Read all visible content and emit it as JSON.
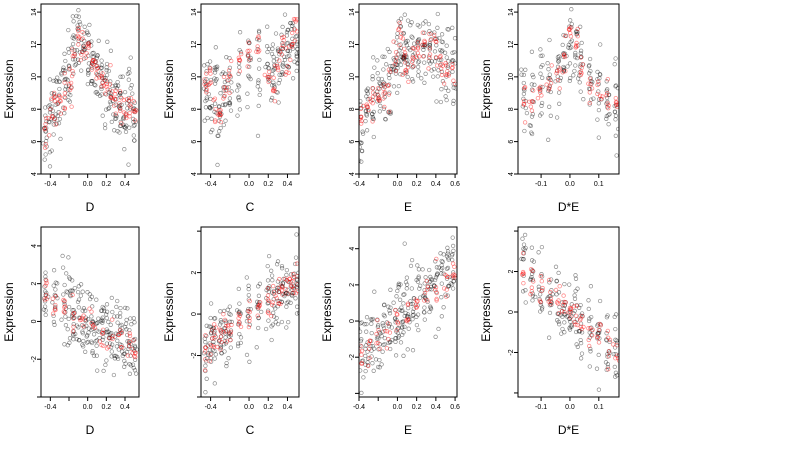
{
  "chart_data": [
    {
      "type": "scatter",
      "xlabel": "D",
      "ylabel": "Expression",
      "xlim": [
        -0.5,
        0.55
      ],
      "ylim": [
        4,
        14.5
      ],
      "xticks": [
        -0.4,
        -0.2,
        0.0,
        0.2,
        0.4
      ],
      "xtick_labels": [
        "-0.4",
        "",
        "0.0",
        "0.2",
        "0.4"
      ],
      "yticks": [
        4,
        6,
        8,
        10,
        12,
        14
      ],
      "ytick_labels": [
        "4",
        "6",
        "8",
        "10",
        "12",
        "14"
      ],
      "series": [
        {
          "color": "#000000",
          "style": "observed",
          "x": [
            -0.45,
            -0.4,
            -0.35,
            -0.3,
            -0.25,
            -0.2,
            -0.15,
            -0.1,
            -0.05,
            0.0,
            0.05,
            0.1,
            0.15,
            0.2,
            0.25,
            0.3,
            0.35,
            0.4,
            0.45,
            0.5
          ],
          "y": [
            6.5,
            7.5,
            8.0,
            8.5,
            9.5,
            10.0,
            11.5,
            12.5,
            12.0,
            11.5,
            11.0,
            10.5,
            10.0,
            9.5,
            9.0,
            8.5,
            8.0,
            8.0,
            8.5,
            7.5
          ]
        },
        {
          "color": "#ff0000",
          "style": "fitted",
          "x": [
            -0.45,
            -0.4,
            -0.35,
            -0.3,
            -0.25,
            -0.2,
            -0.15,
            -0.1,
            -0.05,
            0.0,
            0.05,
            0.1,
            0.15,
            0.2,
            0.25,
            0.3,
            0.35,
            0.4,
            0.45,
            0.5
          ],
          "y": [
            7.0,
            7.5,
            8.0,
            8.5,
            9.0,
            9.5,
            11.0,
            12.0,
            12.0,
            11.5,
            11.0,
            10.5,
            10.0,
            9.5,
            9.0,
            8.5,
            8.0,
            7.8,
            8.0,
            7.5
          ]
        }
      ]
    },
    {
      "type": "scatter",
      "xlabel": "C",
      "ylabel": "Expression",
      "xlim": [
        -0.5,
        0.52
      ],
      "ylim": [
        4,
        14.5
      ],
      "xticks": [
        -0.4,
        -0.2,
        0.0,
        0.2,
        0.4
      ],
      "xtick_labels": [
        "-0.4",
        "",
        "0.0",
        "0.2",
        "0.4"
      ],
      "yticks": [
        4,
        6,
        8,
        10,
        12,
        14
      ],
      "ytick_labels": [
        "4",
        "6",
        "8",
        "10",
        "12",
        "14"
      ],
      "series": [
        {
          "color": "#000000",
          "style": "observed",
          "x": [
            -0.45,
            -0.4,
            -0.35,
            -0.3,
            -0.25,
            -0.2,
            -0.1,
            0.0,
            0.1,
            0.2,
            0.25,
            0.3,
            0.35,
            0.4,
            0.45,
            0.5
          ],
          "y": [
            9.0,
            8.5,
            9.0,
            7.5,
            9.0,
            10.0,
            10.0,
            10.5,
            11.0,
            10.5,
            10.0,
            11.0,
            11.5,
            11.0,
            12.0,
            11.5
          ]
        },
        {
          "color": "#ff0000",
          "style": "fitted",
          "x": [
            -0.45,
            -0.4,
            -0.35,
            -0.3,
            -0.25,
            -0.2,
            -0.1,
            0.0,
            0.1,
            0.2,
            0.25,
            0.3,
            0.35,
            0.4,
            0.45,
            0.5
          ],
          "y": [
            9.5,
            10.0,
            8.0,
            7.5,
            9.5,
            10.5,
            11.0,
            11.5,
            11.5,
            10.0,
            9.0,
            11.0,
            12.0,
            11.0,
            12.5,
            13.0
          ]
        }
      ]
    },
    {
      "type": "scatter",
      "xlabel": "E",
      "ylabel": "Expression",
      "xlim": [
        -0.4,
        0.62
      ],
      "ylim": [
        4,
        14.5
      ],
      "xticks": [
        -0.4,
        -0.2,
        0.0,
        0.2,
        0.4,
        0.6
      ],
      "xtick_labels": [
        "-0.4",
        "",
        "0.0",
        "0.2",
        "0.4",
        "0.6"
      ],
      "yticks": [
        4,
        6,
        8,
        10,
        12,
        14
      ],
      "ytick_labels": [
        "4",
        "6",
        "8",
        "10",
        "12",
        "14"
      ],
      "series": [
        {
          "color": "#000000",
          "style": "observed",
          "x": [
            -0.38,
            -0.32,
            -0.26,
            -0.2,
            -0.14,
            -0.08,
            -0.02,
            0.02,
            0.06,
            0.1,
            0.16,
            0.22,
            0.28,
            0.34,
            0.4,
            0.46,
            0.52,
            0.58
          ],
          "y": [
            7.0,
            8.0,
            8.5,
            9.0,
            9.5,
            9.5,
            10.5,
            12.0,
            11.5,
            11.0,
            11.5,
            11.0,
            11.5,
            12.0,
            11.5,
            11.0,
            11.0,
            10.5
          ]
        },
        {
          "color": "#ff0000",
          "style": "fitted",
          "x": [
            -0.38,
            -0.32,
            -0.26,
            -0.2,
            -0.14,
            -0.08,
            -0.02,
            0.02,
            0.06,
            0.1,
            0.16,
            0.22,
            0.28,
            0.34,
            0.4,
            0.46,
            0.52,
            0.58
          ],
          "y": [
            7.5,
            8.0,
            8.5,
            9.0,
            9.2,
            9.5,
            11.0,
            12.5,
            11.5,
            10.5,
            11.0,
            11.5,
            12.0,
            12.0,
            11.5,
            10.5,
            10.5,
            10.0
          ]
        }
      ]
    },
    {
      "type": "scatter",
      "xlabel": "D*E",
      "ylabel": "Expression",
      "xlim": [
        -0.18,
        0.17
      ],
      "ylim": [
        4,
        14.5
      ],
      "xticks": [
        -0.1,
        0.0,
        0.1
      ],
      "xtick_labels": [
        "-0.1",
        "0.0",
        "0.1"
      ],
      "yticks": [
        4,
        6,
        8,
        10,
        12,
        14
      ],
      "ytick_labels": [
        "4",
        "6",
        "8",
        "10",
        "12",
        "14"
      ],
      "series": [
        {
          "color": "#000000",
          "style": "observed",
          "x": [
            -0.16,
            -0.13,
            -0.1,
            -0.07,
            -0.04,
            -0.02,
            0.0,
            0.02,
            0.04,
            0.07,
            0.1,
            0.13,
            0.16
          ],
          "y": [
            9.0,
            9.0,
            9.5,
            9.5,
            10.0,
            11.0,
            12.5,
            11.5,
            10.5,
            9.5,
            9.0,
            8.5,
            8.0
          ]
        },
        {
          "color": "#ff0000",
          "style": "fitted",
          "x": [
            -0.16,
            -0.13,
            -0.1,
            -0.07,
            -0.04,
            -0.02,
            0.0,
            0.02,
            0.04,
            0.07,
            0.1,
            0.13,
            0.16
          ],
          "y": [
            8.5,
            8.5,
            9.0,
            9.5,
            10.0,
            11.0,
            12.5,
            12.0,
            10.5,
            9.5,
            9.0,
            8.5,
            8.0
          ]
        }
      ]
    },
    {
      "type": "scatter",
      "xlabel": "D",
      "ylabel": "Expression",
      "xlim": [
        -0.5,
        0.55
      ],
      "ylim": [
        -4,
        5
      ],
      "xticks": [
        -0.4,
        -0.2,
        0.0,
        0.2,
        0.4
      ],
      "xtick_labels": [
        "-0.4",
        "",
        "0.0",
        "0.2",
        "0.4"
      ],
      "yticks": [
        -4,
        -2,
        0,
        2,
        4
      ],
      "ytick_labels": [
        "",
        "-2",
        "0",
        "2",
        "4"
      ],
      "series": [
        {
          "color": "#000000",
          "style": "observed",
          "x": [
            -0.45,
            -0.35,
            -0.25,
            -0.2,
            -0.15,
            -0.1,
            -0.05,
            0.0,
            0.05,
            0.1,
            0.15,
            0.2,
            0.25,
            0.3,
            0.35,
            0.4,
            0.45,
            0.5
          ],
          "y": [
            1.5,
            1.2,
            1.0,
            0.8,
            0.5,
            0.5,
            0.2,
            0.0,
            -0.2,
            -0.3,
            -0.5,
            -0.6,
            -0.8,
            -1.0,
            -1.0,
            -1.3,
            -1.5,
            -1.4
          ]
        },
        {
          "color": "#ff0000",
          "style": "fitted",
          "x": [
            -0.45,
            -0.35,
            -0.25,
            -0.15,
            -0.05,
            0.05,
            0.15,
            0.25,
            0.35,
            0.45,
            0.5
          ],
          "y": [
            1.4,
            1.05,
            0.75,
            0.45,
            0.15,
            -0.15,
            -0.45,
            -0.75,
            -1.05,
            -1.35,
            -1.5
          ]
        }
      ]
    },
    {
      "type": "scatter",
      "xlabel": "C",
      "ylabel": "Expression",
      "xlim": [
        -0.5,
        0.52
      ],
      "ylim": [
        -4,
        4.2
      ],
      "xticks": [
        -0.4,
        -0.2,
        0.0,
        0.2,
        0.4
      ],
      "xtick_labels": [
        "-0.4",
        "",
        "0.0",
        "0.2",
        "0.4"
      ],
      "yticks": [
        -4,
        -2,
        0,
        2,
        4
      ],
      "ytick_labels": [
        "",
        "-2",
        "0",
        "2",
        ""
      ],
      "series": [
        {
          "color": "#000000",
          "style": "observed",
          "x": [
            -0.45,
            -0.4,
            -0.35,
            -0.3,
            -0.25,
            -0.2,
            -0.1,
            0.0,
            0.1,
            0.2,
            0.25,
            0.3,
            0.35,
            0.4,
            0.45,
            0.5
          ],
          "y": [
            -1.6,
            -1.4,
            -1.2,
            -1.0,
            -0.8,
            -0.6,
            -0.3,
            0.0,
            0.3,
            0.7,
            0.9,
            1.0,
            1.1,
            1.3,
            1.5,
            1.6
          ]
        },
        {
          "color": "#ff0000",
          "style": "fitted",
          "x": [
            -0.45,
            -0.4,
            -0.35,
            -0.3,
            -0.25,
            -0.2,
            -0.1,
            0.0,
            0.1,
            0.2,
            0.25,
            0.3,
            0.35,
            0.4,
            0.45,
            0.5
          ],
          "y": [
            -1.6,
            -1.42,
            -1.25,
            -1.07,
            -0.9,
            -0.72,
            -0.37,
            0.0,
            0.35,
            0.7,
            0.88,
            1.05,
            1.22,
            1.4,
            1.57,
            1.75
          ]
        }
      ]
    },
    {
      "type": "scatter",
      "xlabel": "E",
      "ylabel": "Expression",
      "xlim": [
        -0.4,
        0.62
      ],
      "ylim": [
        -4.2,
        5.2
      ],
      "xticks": [
        -0.4,
        -0.2,
        0.0,
        0.2,
        0.4,
        0.6
      ],
      "xtick_labels": [
        "-0.4",
        "",
        "0.0",
        "0.2",
        "0.4",
        "0.6"
      ],
      "yticks": [
        -4,
        -2,
        0,
        2,
        4
      ],
      "ytick_labels": [
        "",
        "-2",
        "0",
        "2",
        "4"
      ],
      "series": [
        {
          "color": "#000000",
          "style": "observed",
          "x": [
            -0.38,
            -0.32,
            -0.26,
            -0.2,
            -0.14,
            -0.08,
            -0.02,
            0.02,
            0.06,
            0.1,
            0.16,
            0.22,
            0.28,
            0.34,
            0.4,
            0.46,
            0.52,
            0.58
          ],
          "y": [
            -2.0,
            -1.5,
            -1.2,
            -1.0,
            -0.7,
            -0.4,
            0.0,
            0.3,
            0.4,
            0.6,
            1.0,
            1.2,
            1.5,
            1.8,
            2.2,
            2.5,
            2.8,
            3.0
          ]
        },
        {
          "color": "#ff0000",
          "style": "fitted",
          "x": [
            -0.38,
            -0.3,
            -0.2,
            -0.1,
            0.0,
            0.1,
            0.2,
            0.3,
            0.4,
            0.5,
            0.58
          ],
          "y": [
            -1.8,
            -1.4,
            -0.95,
            -0.5,
            -0.05,
            0.4,
            0.85,
            1.3,
            1.75,
            2.2,
            2.95
          ]
        }
      ]
    },
    {
      "type": "scatter",
      "xlabel": "D*E",
      "ylabel": "Expression",
      "xlim": [
        -0.18,
        0.17
      ],
      "ylim": [
        -4.2,
        4.2
      ],
      "xticks": [
        -0.1,
        0.0,
        0.1
      ],
      "xtick_labels": [
        "-0.1",
        "0.0",
        "0.1"
      ],
      "yticks": [
        -4,
        -2,
        0,
        2,
        4
      ],
      "ytick_labels": [
        "",
        "-2",
        "0",
        "2",
        ""
      ],
      "series": [
        {
          "color": "#000000",
          "style": "observed",
          "x": [
            -0.16,
            -0.13,
            -0.1,
            -0.07,
            -0.04,
            -0.02,
            0.0,
            0.02,
            0.04,
            0.07,
            0.1,
            0.13,
            0.16
          ],
          "y": [
            2.0,
            1.5,
            1.0,
            0.8,
            0.5,
            0.2,
            0.0,
            -0.2,
            -0.5,
            -0.8,
            -1.0,
            -1.5,
            -1.9
          ]
        },
        {
          "color": "#ff0000",
          "style": "fitted",
          "x": [
            -0.16,
            -0.13,
            -0.1,
            -0.07,
            -0.04,
            -0.02,
            0.0,
            0.02,
            0.04,
            0.07,
            0.1,
            0.13,
            0.16
          ],
          "y": [
            2.0,
            1.6,
            1.25,
            0.9,
            0.5,
            0.25,
            0.0,
            -0.25,
            -0.5,
            -0.85,
            -1.2,
            -1.55,
            -1.9
          ]
        }
      ]
    }
  ]
}
